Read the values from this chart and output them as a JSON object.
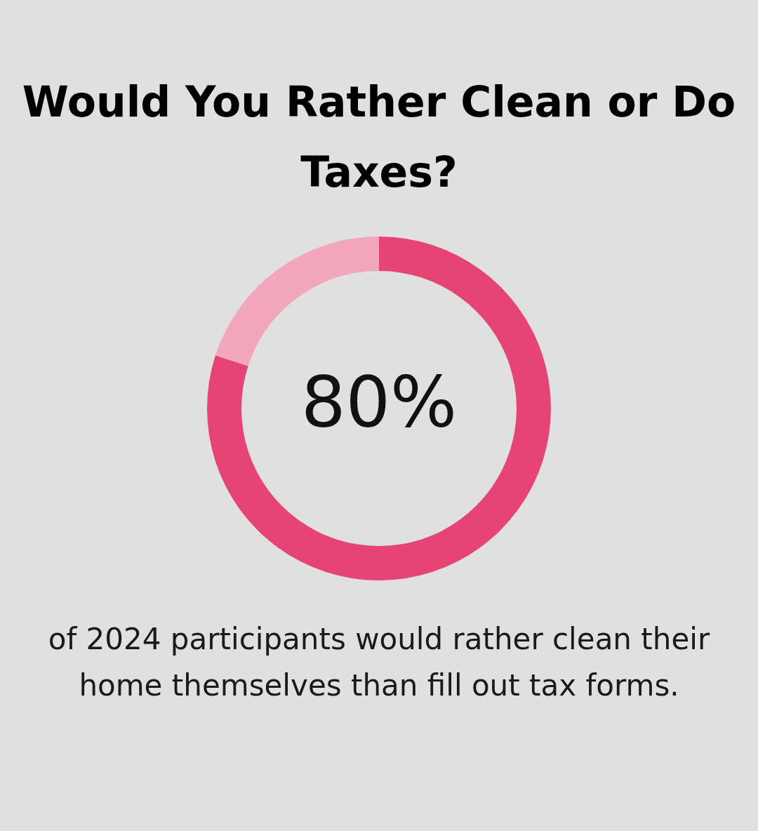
{
  "chart_data": {
    "type": "donut",
    "title": "Would You Rather Clean or Do Taxes?",
    "categories": [
      null,
      null
    ],
    "values": [
      80,
      20
    ],
    "colors": [
      "#e54475",
      "#f2a7bd"
    ],
    "value_labels": [
      "80%",
      null
    ],
    "annotations": [
      "of 2024 participants would rather clean their home themselves than fill out tax forms."
    ]
  }
}
